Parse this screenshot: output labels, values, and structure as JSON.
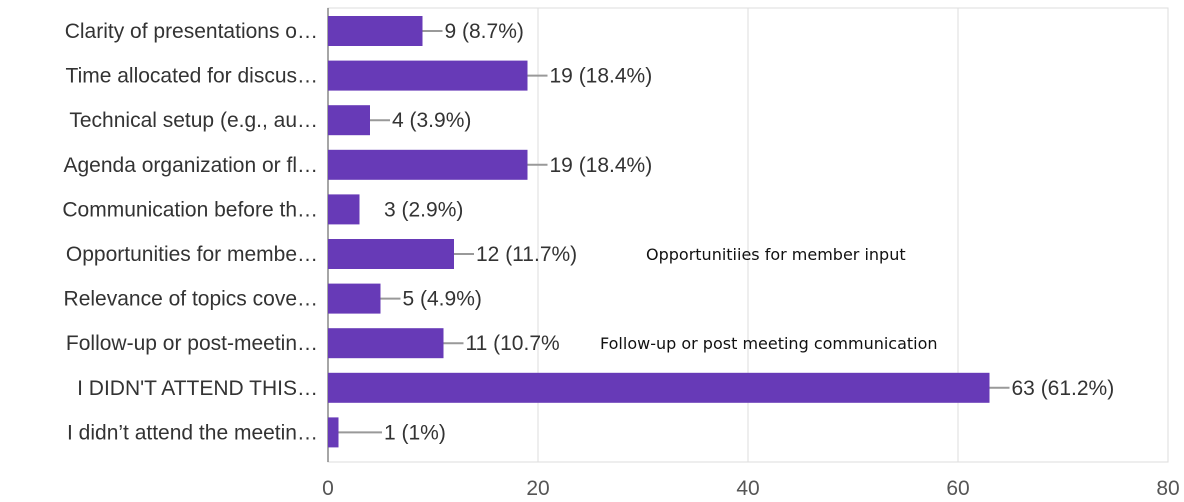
{
  "chart_data": {
    "type": "bar",
    "orientation": "horizontal",
    "categories": [
      "Clarity of presentations o…",
      "Time allocated for discus…",
      "Technical setup (e.g., au…",
      "Agenda organization or fl…",
      "Communication before th…",
      "Opportunities for membe…",
      "Relevance of topics cove…",
      "Follow-up or post-meetin…",
      "I DIDN'T ATTEND THIS…",
      "I didn’t attend the meetin…"
    ],
    "values": [
      9,
      19,
      4,
      19,
      3,
      12,
      5,
      11,
      63,
      1
    ],
    "data_labels": [
      "9 (8.7%)",
      "19 (18.4%)",
      "4 (3.9%)",
      "19 (18.4%)",
      "3 (2.9%)",
      "12 (11.7%)",
      "5 (4.9%)",
      "11 (10.7%",
      "63 (61.2%)",
      "1 (1%)"
    ],
    "xlim": [
      0,
      80
    ],
    "xticks": [
      "0",
      "20",
      "40",
      "60",
      "80"
    ],
    "grid": true,
    "bar_color": "#673ab7",
    "leader_color": "#999999",
    "grid_color": "#dddddd",
    "annotations": [
      {
        "text": "Opportunitiies for member input",
        "category_index": 5
      },
      {
        "text": "Follow-up or post meeting communication",
        "category_index": 7
      }
    ]
  }
}
